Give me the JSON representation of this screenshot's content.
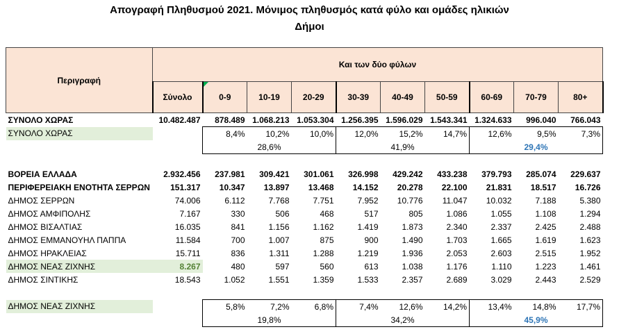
{
  "title_line1": "Απογραφή Πληθυσμού 2021. Μόνιμος πληθυσμός κατά φύλο και ομάδες ηλικιών",
  "title_line2": "Δήμοι",
  "header": {
    "description": "Περιγραφή",
    "group": "Και των δύο φύλων",
    "columns": [
      "Σύνολο",
      "0-9",
      "10-19",
      "20-29",
      "30-39",
      "40-49",
      "50-59",
      "60-69",
      "70-79",
      "80+"
    ]
  },
  "rows": {
    "synolo": {
      "label": "ΣΥΝΟΛΟ ΧΩΡΑΣ",
      "values": [
        "10.482.487",
        "878.489",
        "1.068.213",
        "1.053.304",
        "1.256.395",
        "1.596.029",
        "1.543.341",
        "1.324.633",
        "996.040",
        "766.043"
      ]
    },
    "synolo_pct": {
      "label": "ΣΥΝΟΛΟ ΧΩΡΑΣ",
      "values": [
        "",
        "8,4%",
        "10,2%",
        "10,0%",
        "12,0%",
        "15,2%",
        "14,7%",
        "12,6%",
        "9,5%",
        "7,3%"
      ]
    },
    "synolo_groups": [
      "28,6%",
      "41,9%",
      "29,4%"
    ],
    "voreia": {
      "label": "ΒΟΡΕΙΑ ΕΛΛΑΔΑ",
      "values": [
        "2.932.456",
        "237.981",
        "309.421",
        "301.061",
        "326.998",
        "429.242",
        "433.238",
        "379.793",
        "285.074",
        "229.637"
      ]
    },
    "serron_pe": {
      "label": "ΠΕΡΙΦΕΡΕΙΑΚΗ ΕΝΟΤΗΤΑ ΣΕΡΡΩΝ",
      "values": [
        "151.317",
        "10.347",
        "13.897",
        "13.468",
        "14.152",
        "20.278",
        "22.100",
        "21.831",
        "18.517",
        "16.726"
      ]
    },
    "serron": {
      "label": "ΔΗΜΟΣ ΣΕΡΡΩΝ",
      "values": [
        "74.006",
        "6.112",
        "7.768",
        "7.751",
        "7.952",
        "10.776",
        "11.047",
        "10.032",
        "7.188",
        "5.380"
      ]
    },
    "amfipolis": {
      "label": "ΔΗΜΟΣ ΑΜΦΙΠΟΛΗΣ",
      "values": [
        "7.167",
        "330",
        "506",
        "468",
        "517",
        "805",
        "1.086",
        "1.055",
        "1.108",
        "1.294"
      ]
    },
    "visaltias": {
      "label": "ΔΗΜΟΣ ΒΙΣΑΛΤΙΑΣ",
      "values": [
        "16.035",
        "841",
        "1.156",
        "1.162",
        "1.419",
        "1.873",
        "2.340",
        "2.337",
        "2.425",
        "2.488"
      ]
    },
    "pappa": {
      "label": "ΔΗΜΟΣ ΕΜΜΑΝΟΥΗΛ ΠΑΠΠΑ",
      "values": [
        "11.584",
        "700",
        "1.007",
        "875",
        "900",
        "1.490",
        "1.703",
        "1.665",
        "1.619",
        "1.623"
      ]
    },
    "irakleias": {
      "label": "ΔΗΜΟΣ ΗΡΑΚΛΕΙΑΣ",
      "values": [
        "15.711",
        "836",
        "1.311",
        "1.288",
        "1.219",
        "1.936",
        "2.053",
        "2.603",
        "2.515",
        "1.952"
      ]
    },
    "zichnis": {
      "label": "ΔΗΜΟΣ ΝΕΑΣ ΖΙΧΝΗΣ",
      "values": [
        "8.267",
        "480",
        "597",
        "560",
        "613",
        "1.038",
        "1.176",
        "1.110",
        "1.223",
        "1.461"
      ]
    },
    "sintikis": {
      "label": "ΔΗΜΟΣ ΣΙΝΤΙΚΗΣ",
      "values": [
        "18.543",
        "1.052",
        "1.551",
        "1.359",
        "1.533",
        "2.357",
        "2.689",
        "3.029",
        "2.443",
        "2.529"
      ]
    },
    "zichnis_pct": {
      "label": "ΔΗΜΟΣ ΝΕΑΣ ΖΙΧΝΗΣ",
      "values": [
        "",
        "5,8%",
        "7,2%",
        "6,8%",
        "7,4%",
        "12,6%",
        "14,2%",
        "13,4%",
        "14,8%",
        "17,7%"
      ]
    },
    "zichnis_groups": [
      "19,8%",
      "34,2%",
      "45,9%"
    ]
  }
}
